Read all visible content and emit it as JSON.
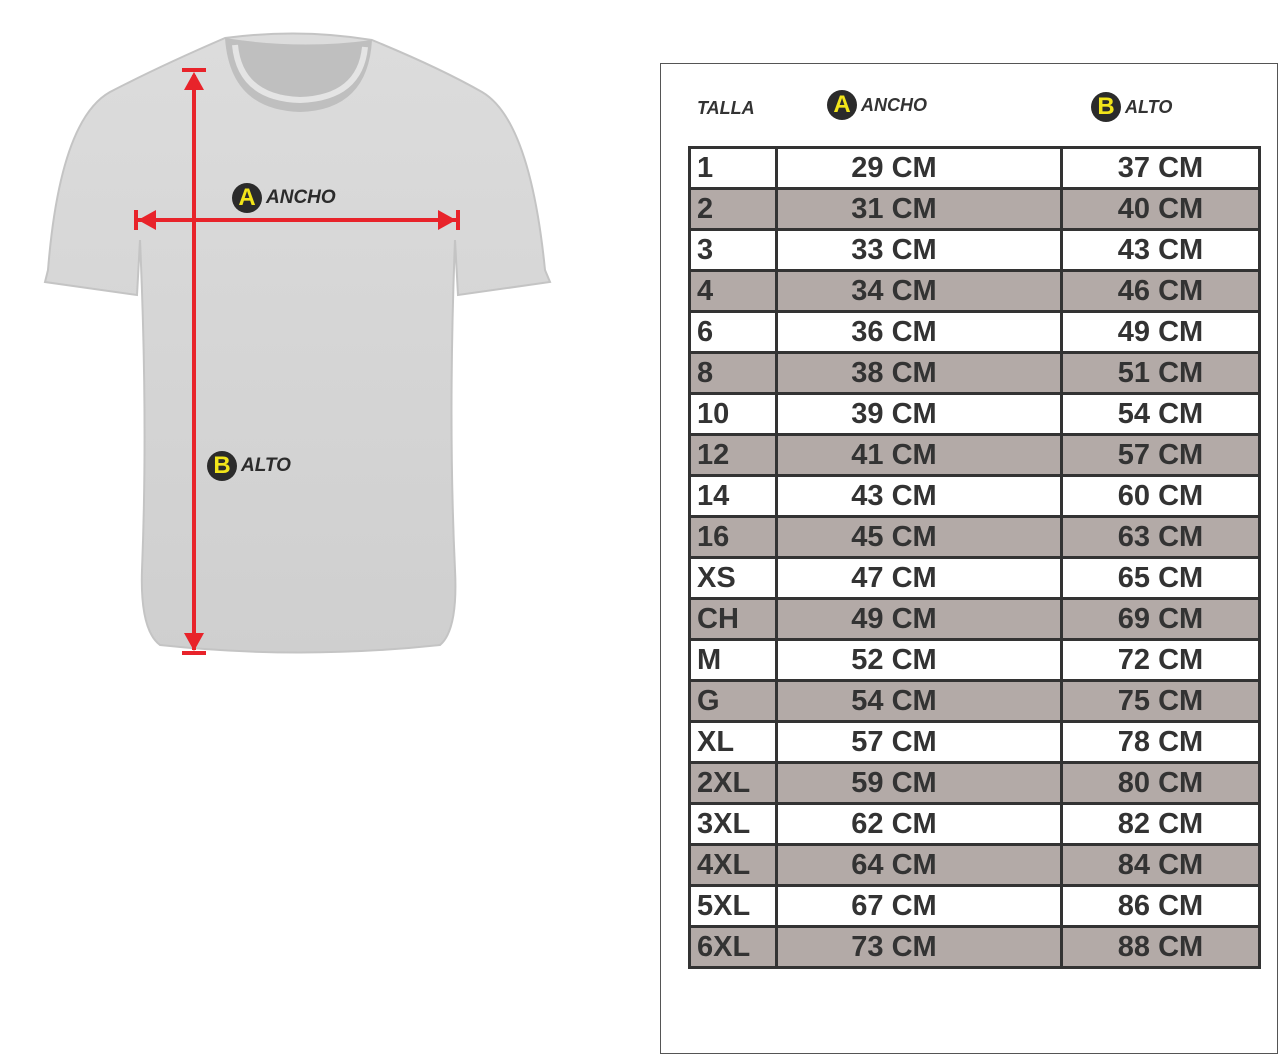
{
  "diagram": {
    "width_label": {
      "letter": "A",
      "text": "ANCHO"
    },
    "height_label": {
      "letter": "B",
      "text": "ALTO"
    }
  },
  "colors": {
    "arrow": "#e8232a",
    "badge_letter": "#f2e51a",
    "badge_bg": "#2b2b2b",
    "row_alt": "#b3aaa7"
  },
  "table": {
    "headers": {
      "size": "TALLA",
      "width_letter": "A",
      "width": "ANCHO",
      "height_letter": "B",
      "height": "ALTO"
    },
    "rows": [
      {
        "size": "1",
        "ancho": "29 CM",
        "alto": "37 CM"
      },
      {
        "size": "2",
        "ancho": "31 CM",
        "alto": "40 CM"
      },
      {
        "size": "3",
        "ancho": "33 CM",
        "alto": "43 CM"
      },
      {
        "size": "4",
        "ancho": "34 CM",
        "alto": "46 CM"
      },
      {
        "size": "6",
        "ancho": "36 CM",
        "alto": "49 CM"
      },
      {
        "size": "8",
        "ancho": "38 CM",
        "alto": "51 CM"
      },
      {
        "size": "10",
        "ancho": "39 CM",
        "alto": "54 CM"
      },
      {
        "size": "12",
        "ancho": "41 CM",
        "alto": "57 CM"
      },
      {
        "size": "14",
        "ancho": "43 CM",
        "alto": "60 CM"
      },
      {
        "size": "16",
        "ancho": "45 CM",
        "alto": "63 CM"
      },
      {
        "size": "XS",
        "ancho": "47 CM",
        "alto": "65 CM"
      },
      {
        "size": "CH",
        "ancho": "49 CM",
        "alto": "69 CM"
      },
      {
        "size": "M",
        "ancho": "52 CM",
        "alto": "72 CM"
      },
      {
        "size": "G",
        "ancho": "54 CM",
        "alto": "75 CM"
      },
      {
        "size": "XL",
        "ancho": "57 CM",
        "alto": "78 CM"
      },
      {
        "size": "2XL",
        "ancho": "59 CM",
        "alto": "80 CM"
      },
      {
        "size": "3XL",
        "ancho": "62 CM",
        "alto": "82 CM"
      },
      {
        "size": "4XL",
        "ancho": "64 CM",
        "alto": "84 CM"
      },
      {
        "size": "5XL",
        "ancho": "67 CM",
        "alto": "86 CM"
      },
      {
        "size": "6XL",
        "ancho": "73 CM",
        "alto": "88 CM"
      }
    ]
  }
}
